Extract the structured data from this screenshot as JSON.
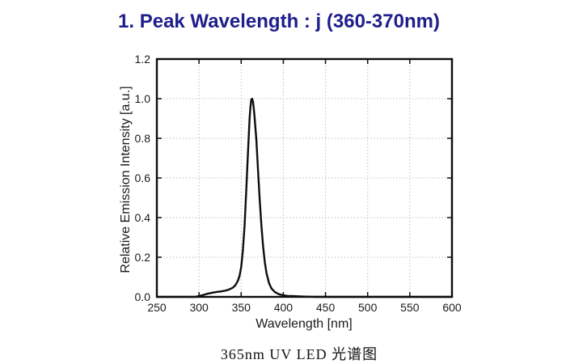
{
  "header": {
    "title": "1. Peak Wavelength : j (360-370nm)"
  },
  "caption": {
    "text": "365nm UV LED 光谱图"
  },
  "colors": {
    "title": "#1e1e8c",
    "curve": "#0d0d0d",
    "plot_border": "#0d0d0d",
    "grid": "#c0c0c0",
    "text": "#1a1a1a"
  },
  "chart_data": {
    "type": "line",
    "title": "",
    "xlabel": "Wavelength [nm]",
    "ylabel": "Relative Emission Intensity [a.u.]",
    "xlim": [
      250,
      600
    ],
    "ylim": [
      0,
      1.2
    ],
    "xticks": [
      250,
      300,
      350,
      400,
      450,
      500,
      550,
      600
    ],
    "yticks": [
      0,
      0.2,
      0.4,
      0.6,
      0.8,
      1.0,
      1.2
    ],
    "ytick_labels": [
      "0.0",
      "0.2",
      "0.4",
      "0.6",
      "0.8",
      "1.0",
      "1.2"
    ],
    "grid": true,
    "grid_style": "dotted",
    "legend": "none",
    "peak": {
      "wavelength_nm": 363,
      "intensity": 1.0
    },
    "series": [
      {
        "name": "365nm UV LED emission spectrum",
        "x": [
          250,
          295,
          300,
          305,
          310,
          315,
          320,
          325,
          330,
          335,
          340,
          343,
          346,
          348,
          350,
          352,
          354,
          356,
          358,
          360,
          361,
          362,
          363,
          364,
          365,
          366,
          368,
          370,
          372,
          374,
          376,
          378,
          380,
          383,
          386,
          390,
          395,
          400,
          405,
          410,
          420,
          430,
          440,
          600
        ],
        "y": [
          0,
          0,
          0.004,
          0.01,
          0.016,
          0.02,
          0.024,
          0.027,
          0.03,
          0.036,
          0.046,
          0.058,
          0.08,
          0.105,
          0.15,
          0.235,
          0.36,
          0.53,
          0.72,
          0.9,
          0.96,
          0.995,
          1.0,
          0.985,
          0.95,
          0.9,
          0.79,
          0.64,
          0.49,
          0.36,
          0.255,
          0.175,
          0.12,
          0.07,
          0.042,
          0.024,
          0.013,
          0.008,
          0.005,
          0.004,
          0.002,
          0.001,
          0,
          0
        ]
      }
    ]
  }
}
